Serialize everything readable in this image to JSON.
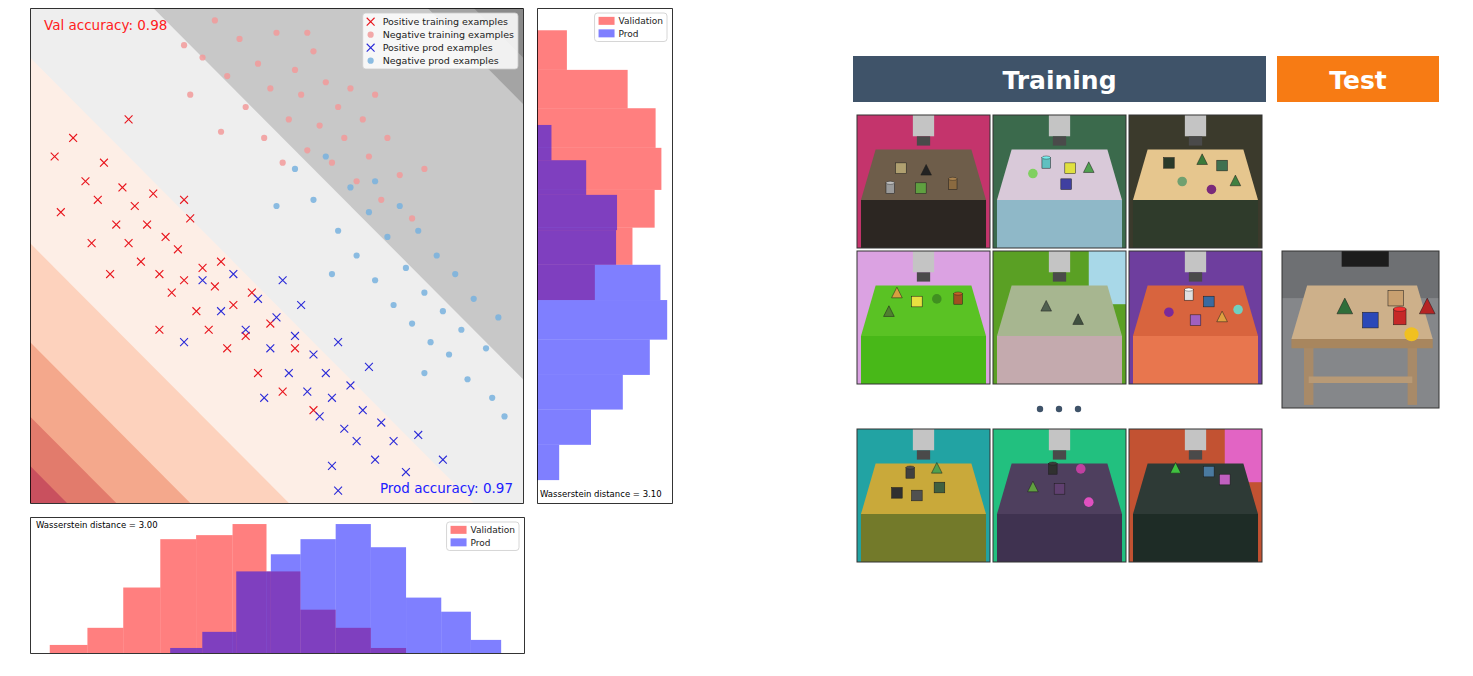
{
  "chart_data": [
    {
      "type": "scatter",
      "xlim": [
        -4,
        4
      ],
      "ylim": [
        -4,
        4
      ],
      "tick_labels": false,
      "legend": "upper right",
      "annotations": [
        {
          "text": "Val accuracy: 0.98",
          "color": "#ff2020"
        },
        {
          "text": "Prod accuracy: 0.97",
          "color": "#2020ff"
        }
      ],
      "regions": {
        "thresholds": [
          -7.4,
          -6.6,
          -5.4,
          -3.8,
          -0.8,
          2.0,
          6.45,
          7.2
        ],
        "colors": [
          "#c9505e",
          "#e27b6c",
          "#f4a88c",
          "#fdd2bd",
          "#fdeee6",
          "#eeeeee",
          "#c8c8c8",
          "#a4a4a4",
          "#8a8a8a"
        ]
      },
      "series": [
        {
          "name": "Positive training examples",
          "color": "#e8141c",
          "marker": "x",
          "x": [
            -3.6,
            -3.3,
            -3.1,
            -2.9,
            -2.8,
            -2.6,
            -2.5,
            -2.4,
            -2.3,
            -2.2,
            -2.1,
            -2.0,
            -1.9,
            -1.8,
            -1.7,
            -1.6,
            -1.5,
            -1.4,
            -1.3,
            -1.2,
            -1.1,
            -1.0,
            -0.9,
            -0.8,
            -0.7,
            -0.5,
            -0.4,
            -0.3,
            -0.1,
            0.1,
            0.3,
            0.6,
            -3.0,
            -2.7,
            -1.9,
            -2.4,
            -3.5,
            -1.5
          ],
          "y": [
            1.6,
            1.9,
            1.2,
            0.9,
            1.5,
            0.5,
            1.1,
            0.2,
            0.8,
            -0.1,
            0.5,
            1.0,
            -0.3,
            0.3,
            -0.6,
            0.1,
            -0.4,
            0.6,
            -0.9,
            -0.2,
            -1.2,
            -0.5,
            -0.1,
            -1.5,
            -0.8,
            -1.3,
            -0.6,
            -1.9,
            -1.1,
            -2.2,
            -1.5,
            -2.5,
            0.2,
            -0.3,
            -1.2,
            2.2,
            0.7,
            0.9
          ]
        },
        {
          "name": "Negative training examples",
          "color": "#f29a9a",
          "marker": "o",
          "x": [
            -1.5,
            -1.2,
            -1.0,
            -0.8,
            -0.6,
            -0.5,
            -0.3,
            -0.1,
            0.0,
            0.2,
            0.3,
            0.4,
            0.5,
            0.6,
            0.7,
            0.8,
            0.9,
            1.0,
            1.1,
            1.2,
            1.3,
            1.4,
            1.5,
            1.7,
            1.8,
            2.0,
            2.2,
            -0.9,
            0.1,
            -1.4,
            2.4,
            0.5,
            -0.2,
            1.6
          ],
          "y": [
            3.4,
            3.2,
            3.8,
            2.9,
            3.5,
            2.4,
            3.1,
            2.7,
            3.6,
            2.2,
            3.0,
            2.6,
            1.7,
            3.3,
            2.1,
            2.8,
            1.5,
            2.4,
            1.9,
            2.7,
            1.2,
            2.2,
            1.6,
            0.9,
            1.9,
            1.3,
            0.6,
            2.0,
            1.5,
            2.6,
            1.4,
            3.6,
            1.9,
            2.6
          ]
        },
        {
          "name": "Positive prod examples",
          "color": "#2a2ad8",
          "marker": "x",
          "x": [
            -1.2,
            -0.9,
            -0.7,
            -0.5,
            -0.3,
            -0.1,
            0.0,
            0.2,
            0.3,
            0.4,
            0.5,
            0.6,
            0.7,
            0.8,
            0.9,
            1.0,
            1.1,
            1.2,
            1.3,
            1.4,
            1.5,
            1.6,
            1.7,
            1.9,
            2.1,
            2.3,
            -0.2,
            0.9,
            2.7,
            1.0,
            -1.5,
            0.1
          ],
          "y": [
            -0.4,
            -0.9,
            -0.3,
            -1.2,
            -0.7,
            -1.5,
            -1.0,
            -1.9,
            -1.3,
            -0.8,
            -2.2,
            -1.6,
            -2.6,
            -1.9,
            -2.3,
            -1.4,
            -2.8,
            -2.1,
            -3.0,
            -2.5,
            -1.8,
            -3.3,
            -2.7,
            -3.0,
            -3.5,
            -2.9,
            -2.3,
            -3.4,
            -3.3,
            -3.8,
            -1.4,
            -0.4
          ]
        },
        {
          "name": "Negative prod examples",
          "color": "#78b2de",
          "marker": "o",
          "x": [
            0.3,
            0.6,
            0.8,
            1.0,
            1.2,
            1.3,
            1.5,
            1.6,
            1.8,
            1.9,
            2.0,
            2.1,
            2.2,
            2.3,
            2.4,
            2.5,
            2.6,
            2.7,
            2.8,
            2.9,
            3.0,
            3.1,
            3.2,
            3.4,
            3.5,
            3.6,
            0.9,
            1.6,
            2.4,
            3.7,
            0.0
          ],
          "y": [
            1.4,
            0.9,
            1.6,
            0.4,
            1.1,
            0.0,
            0.7,
            -0.4,
            0.3,
            -0.8,
            0.8,
            -0.2,
            -1.1,
            0.4,
            -0.6,
            -1.4,
            0.0,
            -0.9,
            -1.6,
            -0.3,
            -1.2,
            -2.0,
            -0.7,
            -1.5,
            -2.3,
            -1.0,
            -0.3,
            1.2,
            -1.9,
            -2.6,
            0.8
          ]
        }
      ]
    },
    {
      "type": "histogram",
      "xlim": [
        -4,
        4
      ],
      "ylim": [
        0,
        135
      ],
      "tick_labels": false,
      "legend": "upper right",
      "annotations": [
        {
          "text": "Wasserstein distance = 3.00"
        }
      ],
      "series": [
        {
          "name": "Validation",
          "color": "#ff0000",
          "bins": [
            -3.68,
            -3.07,
            -2.49,
            -1.89,
            -1.31,
            -0.72,
            -0.17,
            0.38,
            0.95,
            1.52,
            2.09
          ],
          "values": [
            8,
            25,
            65,
            113,
            117,
            128,
            81,
            43,
            25,
            5
          ]
        },
        {
          "name": "Prod",
          "color": "#0000ff",
          "bins": [
            -1.73,
            -1.21,
            -0.66,
            -0.1,
            0.38,
            0.95,
            1.52,
            2.09,
            2.66,
            3.14,
            3.63
          ],
          "values": [
            5,
            21,
            81,
            98,
            113,
            128,
            105,
            55,
            41,
            13
          ]
        }
      ]
    },
    {
      "type": "histogram",
      "orientation": "horizontal",
      "xlim": [
        0,
        140
      ],
      "ylim": [
        -4,
        4
      ],
      "tick_labels": false,
      "legend": "upper right",
      "annotations": [
        {
          "text": "Wasserstein distance = 3.10"
        }
      ],
      "series": [
        {
          "name": "Validation",
          "color": "#ff0000",
          "bins": [
            -0.72,
            -0.15,
            0.45,
            1.06,
            1.74,
            2.38,
            3.0,
            3.64
          ],
          "values": [
            60,
            99,
            122,
            129,
            123,
            94,
            31
          ]
        },
        {
          "name": "Prod",
          "color": "#0000ff",
          "bins": [
            -3.63,
            -3.06,
            -2.49,
            -1.93,
            -1.36,
            -0.72,
            -0.15,
            0.41,
            0.98,
            1.54,
            2.11
          ],
          "values": [
            23,
            56,
            89,
            117,
            135,
            128,
            82,
            83,
            51,
            15
          ]
        }
      ]
    }
  ],
  "panels": {
    "training": "Training",
    "test": "Test"
  }
}
